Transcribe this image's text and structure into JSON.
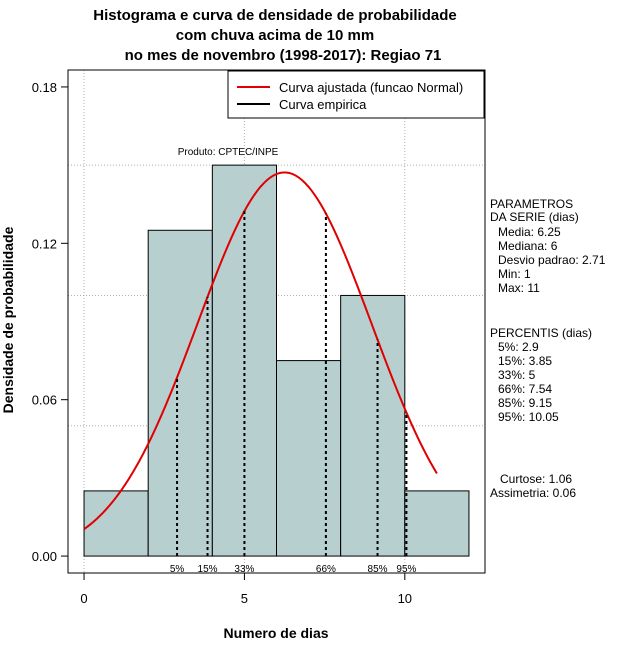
{
  "chart_data": {
    "type": "histogram",
    "title": [
      "Histograma e curva de densidade de probabilidade",
      "com chuva acima de 10 mm",
      "no mes de novembro (1998-2017): Regiao 71"
    ],
    "xlabel": "Numero de dias",
    "ylabel": "Densidade de probabilidade",
    "xlim": [
      -0.5,
      12.5
    ],
    "ylim": [
      -0.0065,
      0.1865
    ],
    "x_ticks": [
      {
        "value": 0,
        "label": "0"
      },
      {
        "value": 5,
        "label": "5"
      },
      {
        "value": 10,
        "label": "10"
      }
    ],
    "y_ticks": [
      {
        "value": 0.0,
        "label": "0.00"
      },
      {
        "value": 0.06,
        "label": "0.06"
      },
      {
        "value": 0.12,
        "label": "0.12"
      },
      {
        "value": 0.18,
        "label": "0.18"
      }
    ],
    "grid_y": [
      0.05,
      0.1,
      0.15
    ],
    "grid_x": [
      0,
      5,
      10
    ],
    "bins": [
      {
        "start": 0,
        "end": 2,
        "density": 0.025
      },
      {
        "start": 2,
        "end": 4,
        "density": 0.125
      },
      {
        "start": 4,
        "end": 6,
        "density": 0.15
      },
      {
        "start": 6,
        "end": 8,
        "density": 0.075
      },
      {
        "start": 8,
        "end": 10,
        "density": 0.1
      },
      {
        "start": 10,
        "end": 12,
        "density": 0.025
      }
    ],
    "bar_color": "#b7cfcf",
    "fitted_curve": {
      "name": "Curva ajustada (funcao Normal)",
      "color": "#e00000",
      "mean": 6.25,
      "sd": 2.71,
      "x_start": 0,
      "x_end": 11
    },
    "empirical_legend": {
      "name": "Curva empirica",
      "color": "#000000"
    },
    "legend_position": "top-right",
    "percentile_lines": [
      {
        "label": "5%",
        "value": 2.9
      },
      {
        "label": "15%",
        "value": 3.85
      },
      {
        "label": "33%",
        "value": 5
      },
      {
        "label": "66%",
        "value": 7.54
      },
      {
        "label": "85%",
        "value": 9.15
      },
      {
        "label": "95%",
        "value": 10.05
      }
    ],
    "annotation": "Produto: CPTEC/INPE"
  },
  "side_panel": {
    "params_title": [
      "PARAMETROS",
      "DA SERIE (dias)"
    ],
    "params": [
      "Media: 6.25",
      "Mediana: 6",
      "Desvio padrao: 2.71",
      "Min: 1",
      "Max: 11"
    ],
    "percentis_title": "PERCENTIS (dias)",
    "percentis": [
      "5%: 2.9",
      "15%: 3.85",
      "33%: 5",
      "66%: 7.54",
      "85%: 9.15",
      "95%: 10.05"
    ],
    "curtose": "Curtose: 1.06",
    "assimetria": "Assimetria: 0.06"
  }
}
